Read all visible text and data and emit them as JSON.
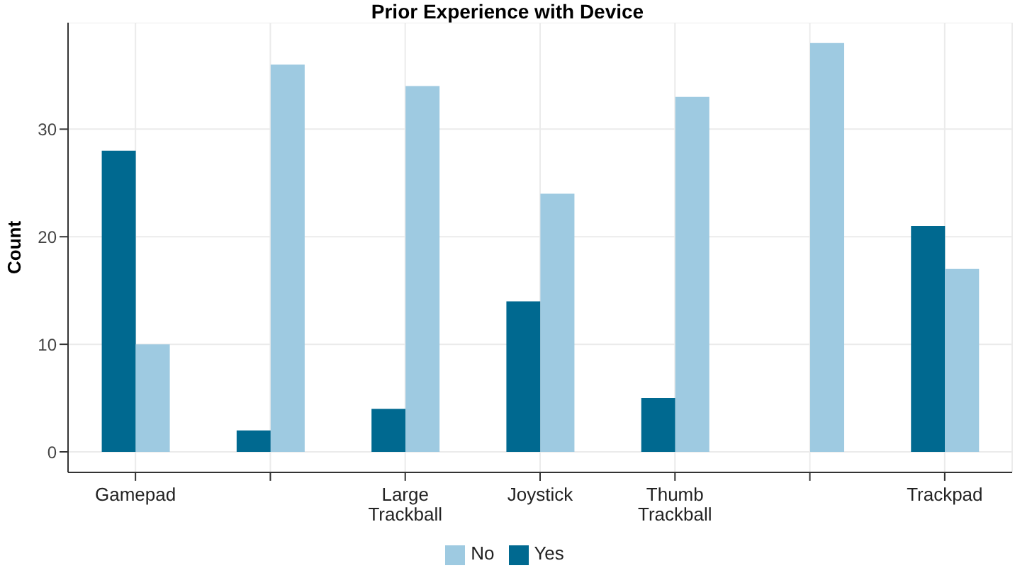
{
  "chart_data": {
    "type": "bar",
    "title": "Prior Experience with Device",
    "ylabel": "Count",
    "categories": [
      "Gamepad",
      null,
      "Large\nTrackball",
      "Joystick",
      "Thumb\nTrackball",
      null,
      "Trackpad"
    ],
    "series": [
      {
        "name": "Yes",
        "color": "#006990",
        "values": [
          28,
          2,
          4,
          14,
          5,
          0,
          21
        ]
      },
      {
        "name": "No",
        "color": "#9ecae1",
        "values": [
          10,
          36,
          34,
          24,
          33,
          38,
          17
        ]
      }
    ],
    "ylim": [
      -1.9,
      39.9
    ],
    "yticks": [
      0,
      10,
      20,
      30
    ],
    "grid": true,
    "legend": "bottom"
  }
}
